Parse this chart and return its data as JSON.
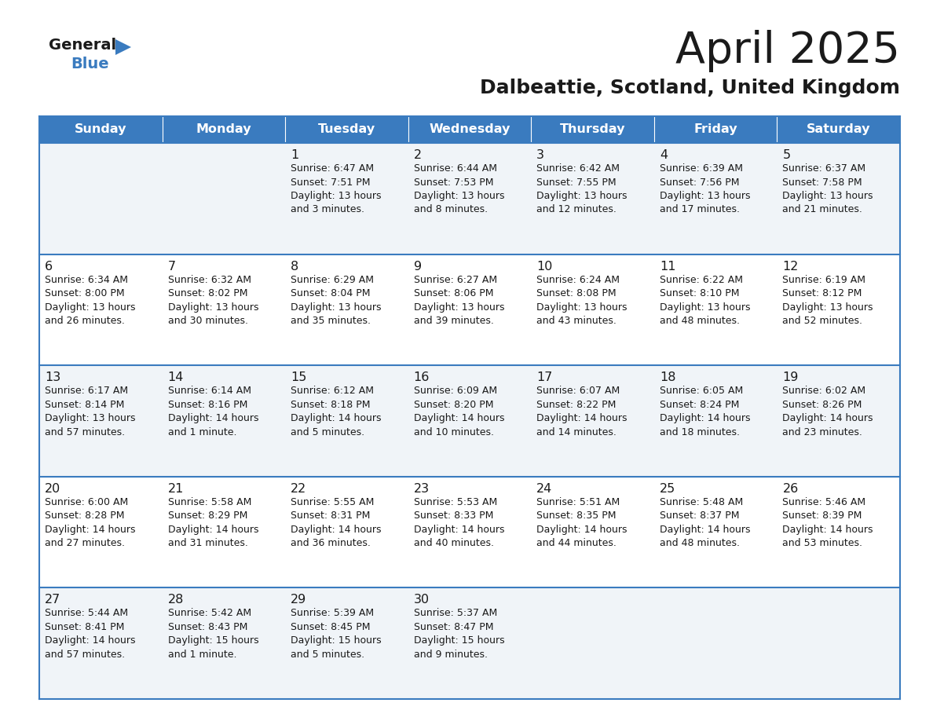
{
  "title": "April 2025",
  "subtitle": "Dalbeattie, Scotland, United Kingdom",
  "header_bg": "#3a7bbf",
  "header_text": "#ffffff",
  "row_bg_light": "#f0f4f8",
  "row_bg_white": "#ffffff",
  "cell_border_color": "#3a7bbf",
  "text_color": "#1a1a1a",
  "days_of_week": [
    "Sunday",
    "Monday",
    "Tuesday",
    "Wednesday",
    "Thursday",
    "Friday",
    "Saturday"
  ],
  "logo_general_color": "#1a1a1a",
  "logo_blue_color": "#3a7bbf",
  "logo_triangle_color": "#3a7bbf",
  "calendar": [
    [
      {
        "day": null,
        "info": null
      },
      {
        "day": null,
        "info": null
      },
      {
        "day": "1",
        "info": "Sunrise: 6:47 AM\nSunset: 7:51 PM\nDaylight: 13 hours\nand 3 minutes."
      },
      {
        "day": "2",
        "info": "Sunrise: 6:44 AM\nSunset: 7:53 PM\nDaylight: 13 hours\nand 8 minutes."
      },
      {
        "day": "3",
        "info": "Sunrise: 6:42 AM\nSunset: 7:55 PM\nDaylight: 13 hours\nand 12 minutes."
      },
      {
        "day": "4",
        "info": "Sunrise: 6:39 AM\nSunset: 7:56 PM\nDaylight: 13 hours\nand 17 minutes."
      },
      {
        "day": "5",
        "info": "Sunrise: 6:37 AM\nSunset: 7:58 PM\nDaylight: 13 hours\nand 21 minutes."
      }
    ],
    [
      {
        "day": "6",
        "info": "Sunrise: 6:34 AM\nSunset: 8:00 PM\nDaylight: 13 hours\nand 26 minutes."
      },
      {
        "day": "7",
        "info": "Sunrise: 6:32 AM\nSunset: 8:02 PM\nDaylight: 13 hours\nand 30 minutes."
      },
      {
        "day": "8",
        "info": "Sunrise: 6:29 AM\nSunset: 8:04 PM\nDaylight: 13 hours\nand 35 minutes."
      },
      {
        "day": "9",
        "info": "Sunrise: 6:27 AM\nSunset: 8:06 PM\nDaylight: 13 hours\nand 39 minutes."
      },
      {
        "day": "10",
        "info": "Sunrise: 6:24 AM\nSunset: 8:08 PM\nDaylight: 13 hours\nand 43 minutes."
      },
      {
        "day": "11",
        "info": "Sunrise: 6:22 AM\nSunset: 8:10 PM\nDaylight: 13 hours\nand 48 minutes."
      },
      {
        "day": "12",
        "info": "Sunrise: 6:19 AM\nSunset: 8:12 PM\nDaylight: 13 hours\nand 52 minutes."
      }
    ],
    [
      {
        "day": "13",
        "info": "Sunrise: 6:17 AM\nSunset: 8:14 PM\nDaylight: 13 hours\nand 57 minutes."
      },
      {
        "day": "14",
        "info": "Sunrise: 6:14 AM\nSunset: 8:16 PM\nDaylight: 14 hours\nand 1 minute."
      },
      {
        "day": "15",
        "info": "Sunrise: 6:12 AM\nSunset: 8:18 PM\nDaylight: 14 hours\nand 5 minutes."
      },
      {
        "day": "16",
        "info": "Sunrise: 6:09 AM\nSunset: 8:20 PM\nDaylight: 14 hours\nand 10 minutes."
      },
      {
        "day": "17",
        "info": "Sunrise: 6:07 AM\nSunset: 8:22 PM\nDaylight: 14 hours\nand 14 minutes."
      },
      {
        "day": "18",
        "info": "Sunrise: 6:05 AM\nSunset: 8:24 PM\nDaylight: 14 hours\nand 18 minutes."
      },
      {
        "day": "19",
        "info": "Sunrise: 6:02 AM\nSunset: 8:26 PM\nDaylight: 14 hours\nand 23 minutes."
      }
    ],
    [
      {
        "day": "20",
        "info": "Sunrise: 6:00 AM\nSunset: 8:28 PM\nDaylight: 14 hours\nand 27 minutes."
      },
      {
        "day": "21",
        "info": "Sunrise: 5:58 AM\nSunset: 8:29 PM\nDaylight: 14 hours\nand 31 minutes."
      },
      {
        "day": "22",
        "info": "Sunrise: 5:55 AM\nSunset: 8:31 PM\nDaylight: 14 hours\nand 36 minutes."
      },
      {
        "day": "23",
        "info": "Sunrise: 5:53 AM\nSunset: 8:33 PM\nDaylight: 14 hours\nand 40 minutes."
      },
      {
        "day": "24",
        "info": "Sunrise: 5:51 AM\nSunset: 8:35 PM\nDaylight: 14 hours\nand 44 minutes."
      },
      {
        "day": "25",
        "info": "Sunrise: 5:48 AM\nSunset: 8:37 PM\nDaylight: 14 hours\nand 48 minutes."
      },
      {
        "day": "26",
        "info": "Sunrise: 5:46 AM\nSunset: 8:39 PM\nDaylight: 14 hours\nand 53 minutes."
      }
    ],
    [
      {
        "day": "27",
        "info": "Sunrise: 5:44 AM\nSunset: 8:41 PM\nDaylight: 14 hours\nand 57 minutes."
      },
      {
        "day": "28",
        "info": "Sunrise: 5:42 AM\nSunset: 8:43 PM\nDaylight: 15 hours\nand 1 minute."
      },
      {
        "day": "29",
        "info": "Sunrise: 5:39 AM\nSunset: 8:45 PM\nDaylight: 15 hours\nand 5 minutes."
      },
      {
        "day": "30",
        "info": "Sunrise: 5:37 AM\nSunset: 8:47 PM\nDaylight: 15 hours\nand 9 minutes."
      },
      {
        "day": null,
        "info": null
      },
      {
        "day": null,
        "info": null
      },
      {
        "day": null,
        "info": null
      }
    ]
  ]
}
